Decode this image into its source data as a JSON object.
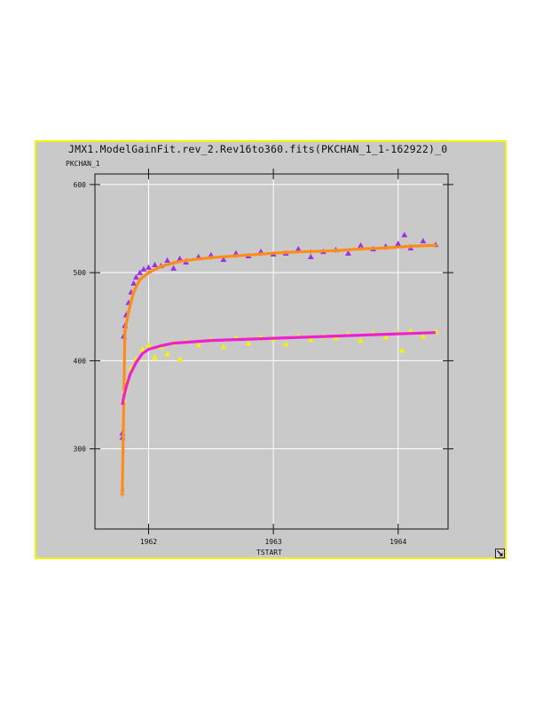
{
  "window": {
    "title": "JMX1.ModelGainFit.rev_2.Rev16to360.fits(PKCHAN_1_1-162922)_0"
  },
  "colors": {
    "panel_bg": "#c9c9c9",
    "panel_border": "#f2f20a",
    "grid": "#ffffff",
    "series_a_points": "#9a30e8",
    "series_a_fit": "#ff8c1a",
    "series_b_points": "#f2f20a",
    "series_b_fit": "#ee22cc"
  },
  "icons": {
    "resize": "resize-arrow-icon"
  },
  "chart_data": {
    "type": "scatter",
    "title": "JMX1.ModelGainFit.rev_2.Rev16to360.fits(PKCHAN_1_1-162922)_0",
    "xlabel": "TSTART",
    "ylabel": "PKCHAN_1",
    "xlim": [
      1961.57,
      1964.4
    ],
    "ylim": [
      209,
      612
    ],
    "x_ticks": [
      1962,
      1963,
      1964
    ],
    "x_tick_labels": [
      "1962",
      "1963",
      "1964"
    ],
    "y_ticks": [
      300,
      400,
      500,
      600
    ],
    "y_tick_labels": [
      "300",
      "400",
      "500",
      "600"
    ],
    "grid": true,
    "series": [
      {
        "marker": "triangle",
        "color": "#9a30e8",
        "x": [
          1961.79,
          1961.79,
          1961.8,
          1961.81,
          1961.82,
          1961.84,
          1961.86,
          1961.88,
          1961.9,
          1961.93,
          1961.96,
          1962.0,
          1962.05,
          1962.1,
          1962.15,
          1962.2,
          1962.25,
          1962.3,
          1962.4,
          1962.5,
          1962.6,
          1962.7,
          1962.8,
          1962.9,
          1963.0,
          1963.1,
          1963.2,
          1963.3,
          1963.4,
          1963.5,
          1963.6,
          1963.7,
          1963.8,
          1963.9,
          1964.0,
          1964.05,
          1964.1,
          1964.2,
          1964.3
        ],
        "y": [
          313,
          318,
          428,
          440,
          452,
          466,
          478,
          488,
          495,
          500,
          504,
          506,
          509,
          508,
          514,
          505,
          516,
          512,
          518,
          520,
          515,
          522,
          519,
          524,
          521,
          522,
          527,
          518,
          524,
          526,
          522,
          531,
          527,
          530,
          533,
          543,
          528,
          536,
          532
        ]
      },
      {
        "marker": "plus",
        "color": "#ff8c1a",
        "x": [
          1961.79,
          1961.79,
          1961.81,
          1961.84,
          1961.88,
          1961.93,
          1962.0,
          1962.1,
          1962.2,
          1962.3,
          1962.5,
          1962.7,
          1962.9,
          1963.1,
          1963.3,
          1963.5,
          1963.7,
          1963.9,
          1964.1,
          1964.3
        ],
        "y": [
          248,
          253,
          434,
          456,
          478,
          492,
          500,
          507,
          511,
          514,
          517,
          519,
          521,
          523,
          524,
          525,
          527,
          528,
          530,
          531
        ]
      },
      {
        "marker": "triangle",
        "color": "#f2f20a",
        "x": [
          1961.8,
          1961.81,
          1961.83,
          1961.86,
          1961.9,
          1961.95,
          1962.0,
          1962.05,
          1962.1,
          1962.15,
          1962.2,
          1962.25,
          1962.3,
          1962.4,
          1962.5,
          1962.6,
          1962.7,
          1962.8,
          1962.9,
          1963.0,
          1963.1,
          1963.2,
          1963.3,
          1963.4,
          1963.5,
          1963.6,
          1963.7,
          1963.8,
          1963.9,
          1964.0,
          1964.03,
          1964.1,
          1964.2,
          1964.3
        ],
        "y": [
          356,
          366,
          378,
          392,
          402,
          413,
          418,
          404,
          416,
          408,
          420,
          402,
          422,
          418,
          424,
          416,
          426,
          420,
          427,
          425,
          419,
          428,
          424,
          428,
          426,
          430,
          423,
          431,
          427,
          432,
          412,
          434,
          428,
          433
        ]
      },
      {
        "marker": "line",
        "color": "#ee22cc",
        "x": [
          1961.79,
          1961.8,
          1961.82,
          1961.85,
          1961.9,
          1961.95,
          1962.0,
          1962.1,
          1962.2,
          1962.3,
          1962.5,
          1962.7,
          1962.9,
          1963.1,
          1963.3,
          1963.5,
          1963.7,
          1963.9,
          1964.1,
          1964.3
        ],
        "y": [
          350,
          358,
          370,
          384,
          398,
          408,
          413,
          417,
          420,
          421,
          423,
          424,
          425,
          426,
          427,
          428,
          429,
          430,
          431,
          432
        ]
      }
    ]
  }
}
